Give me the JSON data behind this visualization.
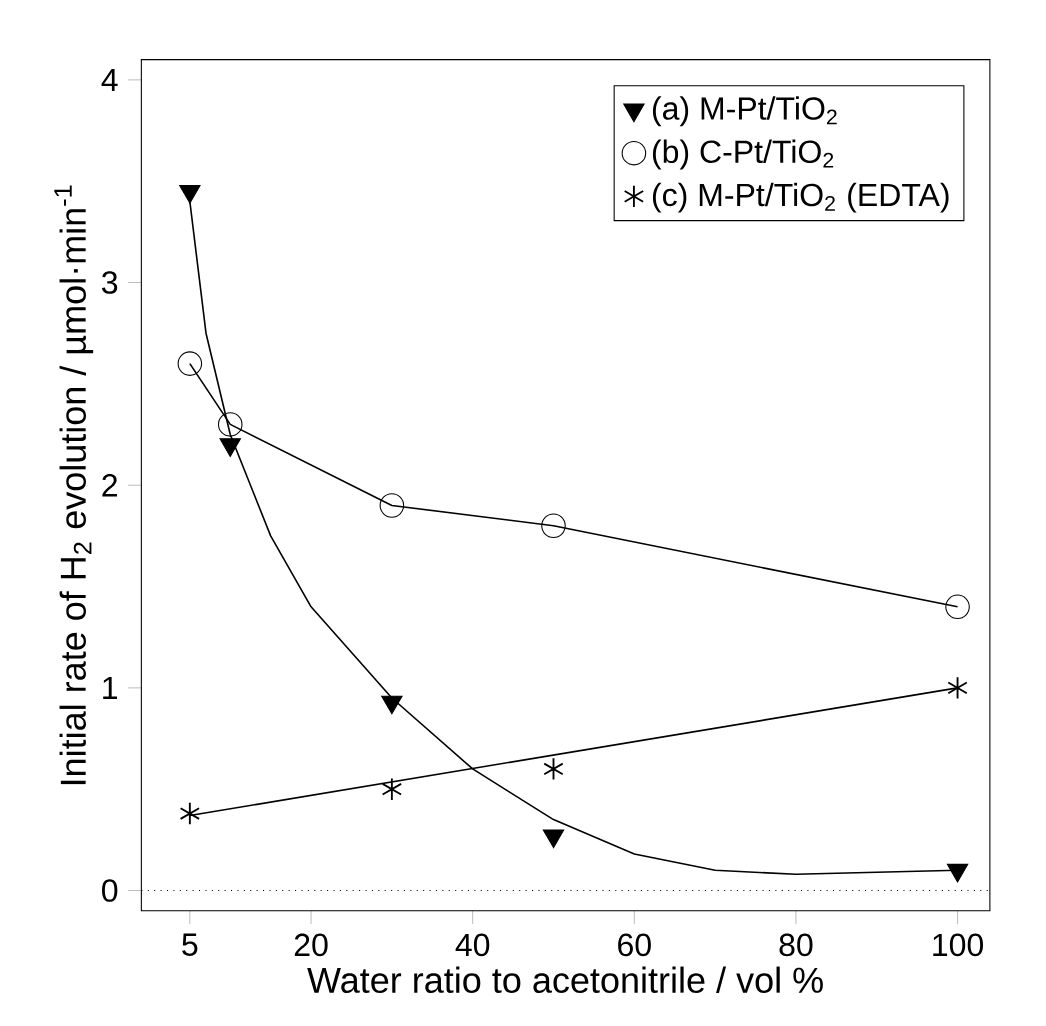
{
  "chart_data": {
    "type": "scatter",
    "xlabel": "Water ratio to acetonitrile / vol %",
    "ylabel": "Initial rate of H$_{2}$ evolution / µmol·min$^{-1}$",
    "xlim": [
      -1,
      104
    ],
    "ylim": [
      -0.1,
      4.1
    ],
    "xticks": [
      5,
      20,
      40,
      60,
      80,
      100
    ],
    "yticks": [
      0,
      1,
      2,
      3,
      4
    ],
    "legend": "top right",
    "grid": false,
    "ref_lines": [
      {
        "axis": "y",
        "value": 0,
        "line_style": "dotted",
        "color": "#000000"
      }
    ],
    "series": [
      {
        "name": "(a) M-Pt/TiO$_{2}$",
        "color": "#000000",
        "marker": "triangle",
        "x": [
          5,
          10,
          30,
          50,
          100
        ],
        "values": [
          3.45,
          2.2,
          0.93,
          0.27,
          0.1
        ]
      },
      {
        "name": "(b) C-Pt/TiO$_{2}$",
        "color": "#000000",
        "marker": "circle",
        "x": [
          5,
          10,
          30,
          50,
          100
        ],
        "values": [
          2.6,
          2.3,
          1.9,
          1.8,
          1.4
        ]
      },
      {
        "name": "(c) M-Pt/TiO$_{2}$ (EDTA)",
        "color": "#000000",
        "marker": "cross",
        "x": [
          5,
          30,
          50,
          100
        ],
        "values": [
          0.38,
          0.5,
          0.6,
          1.0
        ]
      },
      {
        "type": "line",
        "color": "#000000",
        "marker": "none",
        "x": [
          5,
          7,
          10,
          15,
          20,
          30,
          40,
          50,
          60,
          70,
          80,
          90,
          100
        ],
        "values": [
          3.4,
          2.75,
          2.25,
          1.75,
          1.4,
          0.95,
          0.6,
          0.35,
          0.18,
          0.1,
          0.08,
          0.09,
          0.1
        ]
      },
      {
        "type": "line",
        "color": "#000000",
        "marker": "none",
        "x": [
          5,
          10,
          30,
          50,
          100
        ],
        "values": [
          2.6,
          2.3,
          1.9,
          1.8,
          1.4
        ]
      },
      {
        "type": "line",
        "color": "#000000",
        "marker": "none",
        "x": [
          5,
          100
        ],
        "values": [
          0.37,
          1.0
        ]
      }
    ]
  }
}
